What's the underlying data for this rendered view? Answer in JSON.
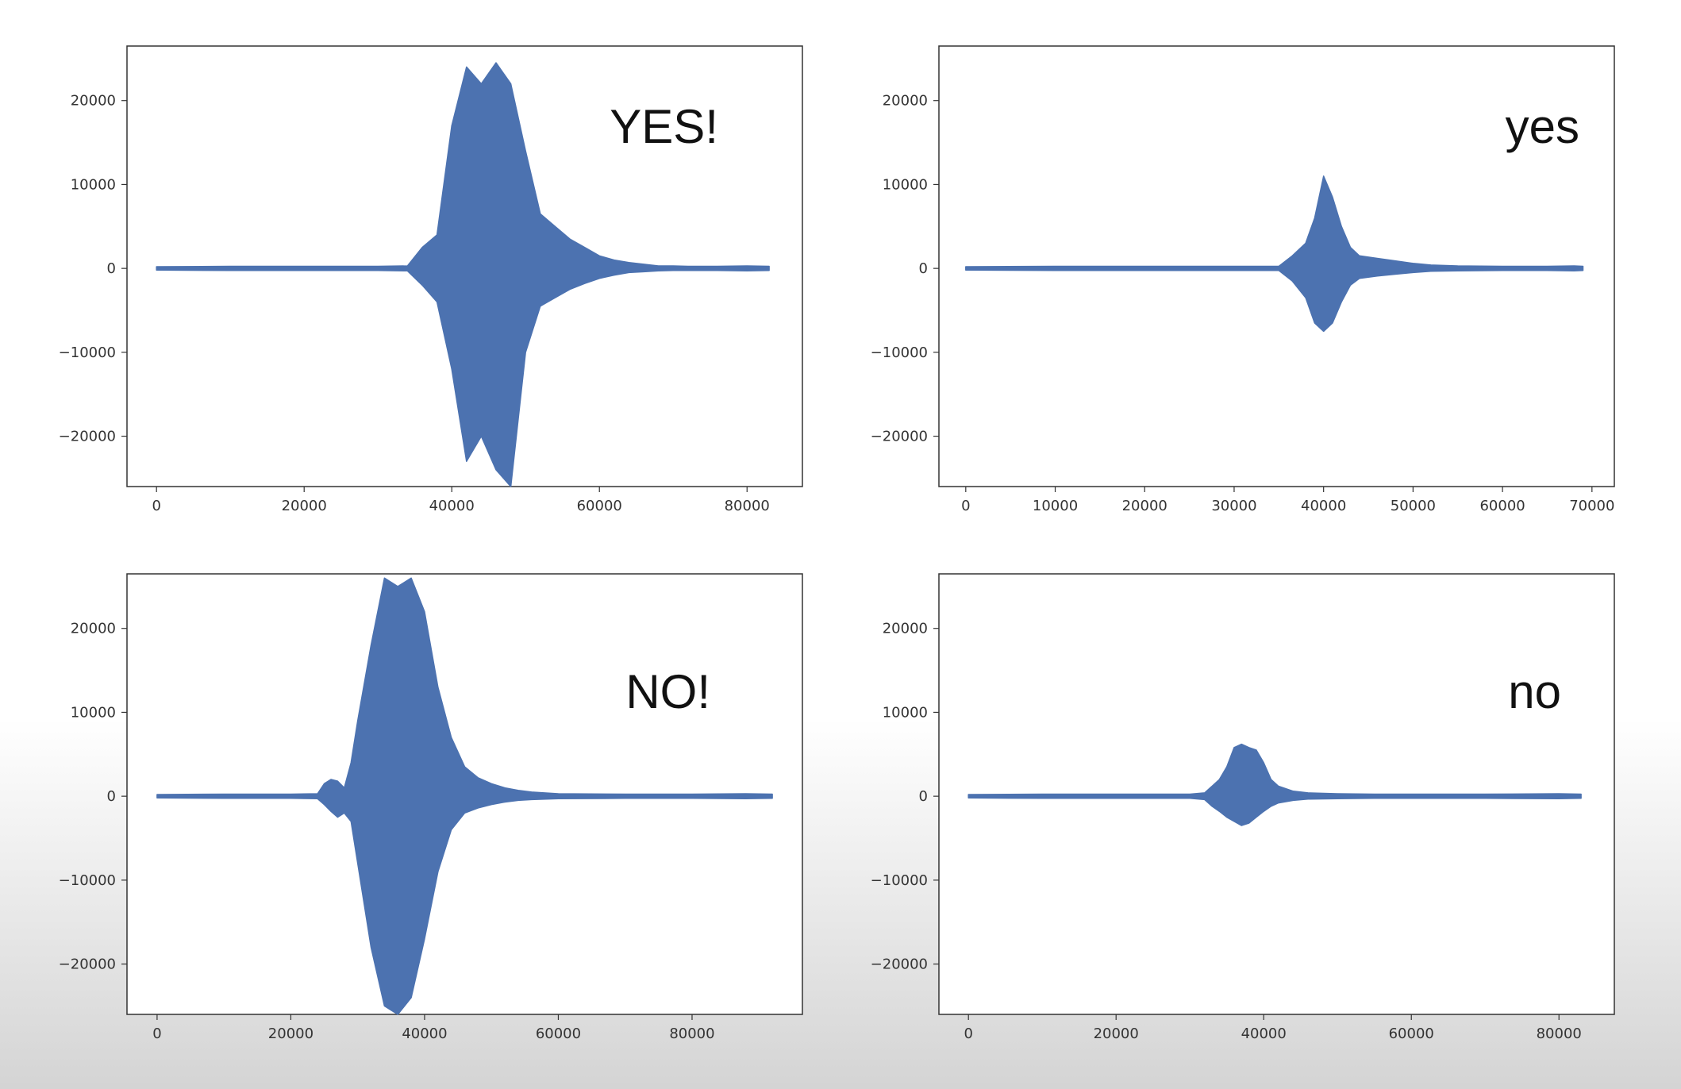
{
  "colors": {
    "waveform": "#4c72b0",
    "axes_frame": "#333333",
    "background_top": "#ffffff",
    "background_bottom": "#d4d4d4"
  },
  "chart_data": [
    {
      "type": "line",
      "annotation": "YES!",
      "xlim": [
        -4000,
        87500
      ],
      "ylim": [
        -26000,
        26500
      ],
      "xticks": [
        0,
        20000,
        40000,
        60000,
        80000
      ],
      "yticks": [
        -20000,
        -10000,
        0,
        10000,
        20000
      ],
      "grid": false,
      "series": [
        {
          "x": [
            0,
            10000,
            20000,
            30000,
            34000,
            36000,
            38000,
            40000,
            42000,
            44000,
            46000,
            48000,
            50000,
            52000,
            54000,
            56000,
            58000,
            60000,
            62000,
            64000,
            66000,
            68000,
            70000,
            72000,
            76000,
            80000,
            83000
          ],
          "y": [
            200,
            250,
            250,
            250,
            300,
            2500,
            4000,
            17000,
            24000,
            22000,
            24500,
            22000,
            14000,
            6500,
            5000,
            3500,
            2500,
            1500,
            1000,
            700,
            500,
            300,
            300,
            250,
            250,
            300,
            250
          ]
        },
        {
          "x": [
            0,
            10000,
            20000,
            30000,
            34000,
            36000,
            38000,
            40000,
            42000,
            44000,
            46000,
            48000,
            50000,
            52000,
            54000,
            56000,
            58000,
            60000,
            62000,
            64000,
            66000,
            68000,
            70000,
            72000,
            76000,
            80000,
            83000
          ],
          "y": [
            -200,
            -250,
            -250,
            -250,
            -300,
            -2000,
            -4000,
            -12000,
            -23000,
            -20000,
            -24000,
            -26000,
            -10000,
            -4500,
            -3500,
            -2500,
            -1800,
            -1200,
            -800,
            -500,
            -400,
            -300,
            -250,
            -250,
            -250,
            -300,
            -250
          ]
        }
      ]
    },
    {
      "type": "line",
      "annotation": "yes",
      "xlim": [
        -3000,
        72500
      ],
      "ylim": [
        -26000,
        26500
      ],
      "xticks": [
        0,
        10000,
        20000,
        30000,
        40000,
        50000,
        60000,
        70000
      ],
      "yticks": [
        -20000,
        -10000,
        0,
        10000,
        20000
      ],
      "grid": false,
      "series": [
        {
          "x": [
            0,
            10000,
            20000,
            30000,
            35000,
            36500,
            38000,
            39000,
            40000,
            41000,
            42000,
            43000,
            44000,
            46000,
            48000,
            50000,
            52000,
            55000,
            60000,
            65000,
            68000,
            69000
          ],
          "y": [
            200,
            250,
            250,
            250,
            250,
            1500,
            3000,
            6000,
            11000,
            8500,
            5000,
            2500,
            1500,
            1200,
            900,
            600,
            400,
            300,
            250,
            250,
            300,
            250
          ]
        },
        {
          "x": [
            0,
            10000,
            20000,
            30000,
            35000,
            36500,
            38000,
            39000,
            40000,
            41000,
            42000,
            43000,
            44000,
            46000,
            48000,
            50000,
            52000,
            55000,
            60000,
            65000,
            68000,
            69000
          ],
          "y": [
            -200,
            -250,
            -250,
            -250,
            -250,
            -1500,
            -3500,
            -6500,
            -7500,
            -6500,
            -4000,
            -2000,
            -1200,
            -900,
            -700,
            -500,
            -350,
            -300,
            -250,
            -250,
            -300,
            -250
          ]
        }
      ]
    },
    {
      "type": "line",
      "annotation": "NO!",
      "xlim": [
        -4500,
        96500
      ],
      "ylim": [
        -26000,
        26500
      ],
      "xticks": [
        0,
        20000,
        40000,
        60000,
        80000
      ],
      "yticks": [
        -20000,
        -10000,
        0,
        10000,
        20000
      ],
      "grid": false,
      "series": [
        {
          "x": [
            0,
            10000,
            20000,
            24000,
            25000,
            26000,
            27000,
            28000,
            29000,
            30000,
            32000,
            34000,
            36000,
            38000,
            40000,
            42000,
            44000,
            46000,
            48000,
            50000,
            52000,
            54000,
            56000,
            60000,
            70000,
            80000,
            88000,
            92000
          ],
          "y": [
            200,
            250,
            250,
            300,
            1500,
            2000,
            1800,
            1000,
            4000,
            9000,
            18000,
            26000,
            25000,
            26000,
            22000,
            13000,
            7000,
            3500,
            2200,
            1500,
            1000,
            700,
            500,
            300,
            250,
            250,
            300,
            250
          ]
        },
        {
          "x": [
            0,
            10000,
            20000,
            24000,
            25000,
            26000,
            27000,
            28000,
            29000,
            30000,
            32000,
            34000,
            36000,
            38000,
            40000,
            42000,
            44000,
            46000,
            48000,
            50000,
            52000,
            54000,
            56000,
            60000,
            70000,
            80000,
            88000,
            92000
          ],
          "y": [
            -200,
            -250,
            -250,
            -300,
            -1000,
            -1800,
            -2500,
            -2000,
            -3000,
            -8000,
            -18000,
            -25000,
            -26000,
            -24000,
            -17000,
            -9000,
            -4000,
            -2000,
            -1400,
            -1000,
            -700,
            -500,
            -400,
            -300,
            -250,
            -250,
            -300,
            -250
          ]
        }
      ]
    },
    {
      "type": "line",
      "annotation": "no",
      "xlim": [
        -4000,
        87500
      ],
      "ylim": [
        -26000,
        26500
      ],
      "xticks": [
        0,
        20000,
        40000,
        60000,
        80000
      ],
      "yticks": [
        -20000,
        -10000,
        0,
        10000,
        20000
      ],
      "grid": false,
      "series": [
        {
          "x": [
            0,
            10000,
            20000,
            30000,
            32000,
            33000,
            34000,
            35000,
            36000,
            37000,
            38000,
            39000,
            40000,
            41000,
            42000,
            44000,
            46000,
            50000,
            55000,
            60000,
            70000,
            80000,
            83000
          ],
          "y": [
            200,
            250,
            250,
            250,
            400,
            1200,
            2000,
            3500,
            5800,
            6200,
            5800,
            5500,
            4000,
            2000,
            1200,
            600,
            400,
            300,
            250,
            250,
            250,
            300,
            250
          ]
        },
        {
          "x": [
            0,
            10000,
            20000,
            30000,
            32000,
            33000,
            34000,
            35000,
            36000,
            37000,
            38000,
            39000,
            40000,
            41000,
            42000,
            44000,
            46000,
            50000,
            55000,
            60000,
            70000,
            80000,
            83000
          ],
          "y": [
            -200,
            -250,
            -250,
            -250,
            -400,
            -1200,
            -1800,
            -2500,
            -3000,
            -3500,
            -3200,
            -2500,
            -1800,
            -1200,
            -800,
            -500,
            -350,
            -300,
            -250,
            -250,
            -250,
            -300,
            -250
          ]
        }
      ]
    }
  ]
}
